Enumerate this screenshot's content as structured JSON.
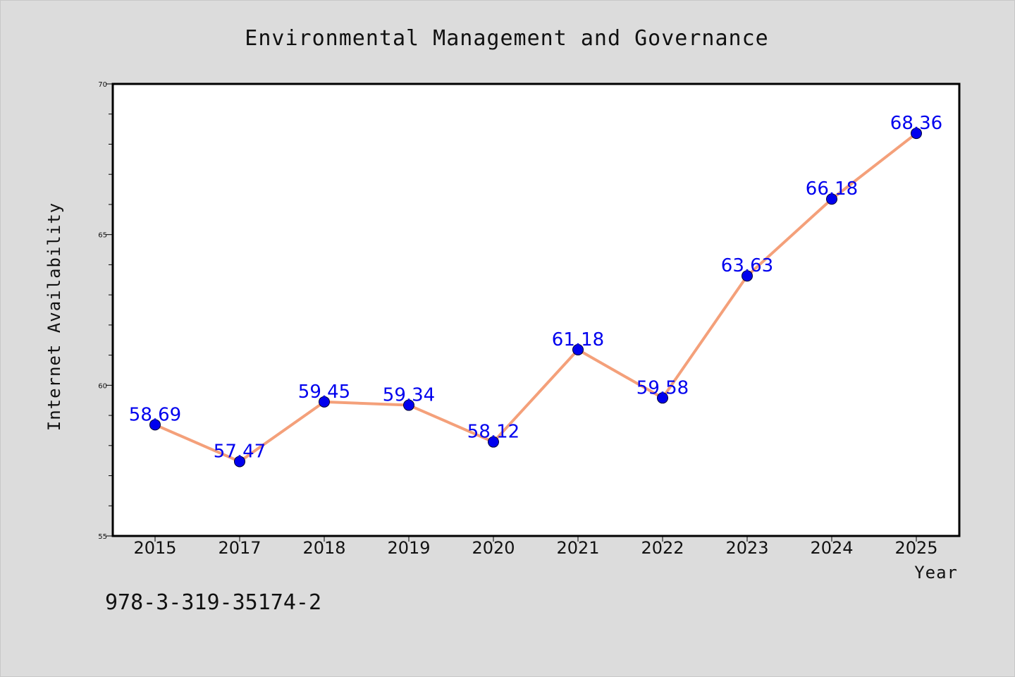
{
  "chart_data": {
    "type": "line",
    "title": "Environmental Management and Governance",
    "xlabel": "Year",
    "ylabel": "Internet Availability",
    "categories": [
      "2015",
      "2017",
      "2018",
      "2019",
      "2020",
      "2021",
      "2022",
      "2023",
      "2024",
      "2025"
    ],
    "series": [
      {
        "values": [
          58.69,
          57.47,
          59.45,
          59.34,
          58.12,
          61.18,
          59.58,
          63.63,
          66.18,
          68.36
        ],
        "labels": [
          "58.69",
          "57.47",
          "59.45",
          "59.34",
          "58.12",
          "61.18",
          "59.58",
          "63.63",
          "66.18",
          "68.36"
        ],
        "line_color": "#f4a07a",
        "marker_color": "#0000ee",
        "label_color": "#0000ee"
      }
    ],
    "ylim": [
      55,
      70
    ],
    "yticks": [
      "55",
      "60",
      "65",
      "70"
    ],
    "grid": false,
    "legend": "none"
  },
  "footer": {
    "isbn": "978-3-319-35174-2"
  },
  "colors": {
    "background": "#dcdcdc",
    "plot_background": "#ffffff",
    "frame": "#000000"
  }
}
